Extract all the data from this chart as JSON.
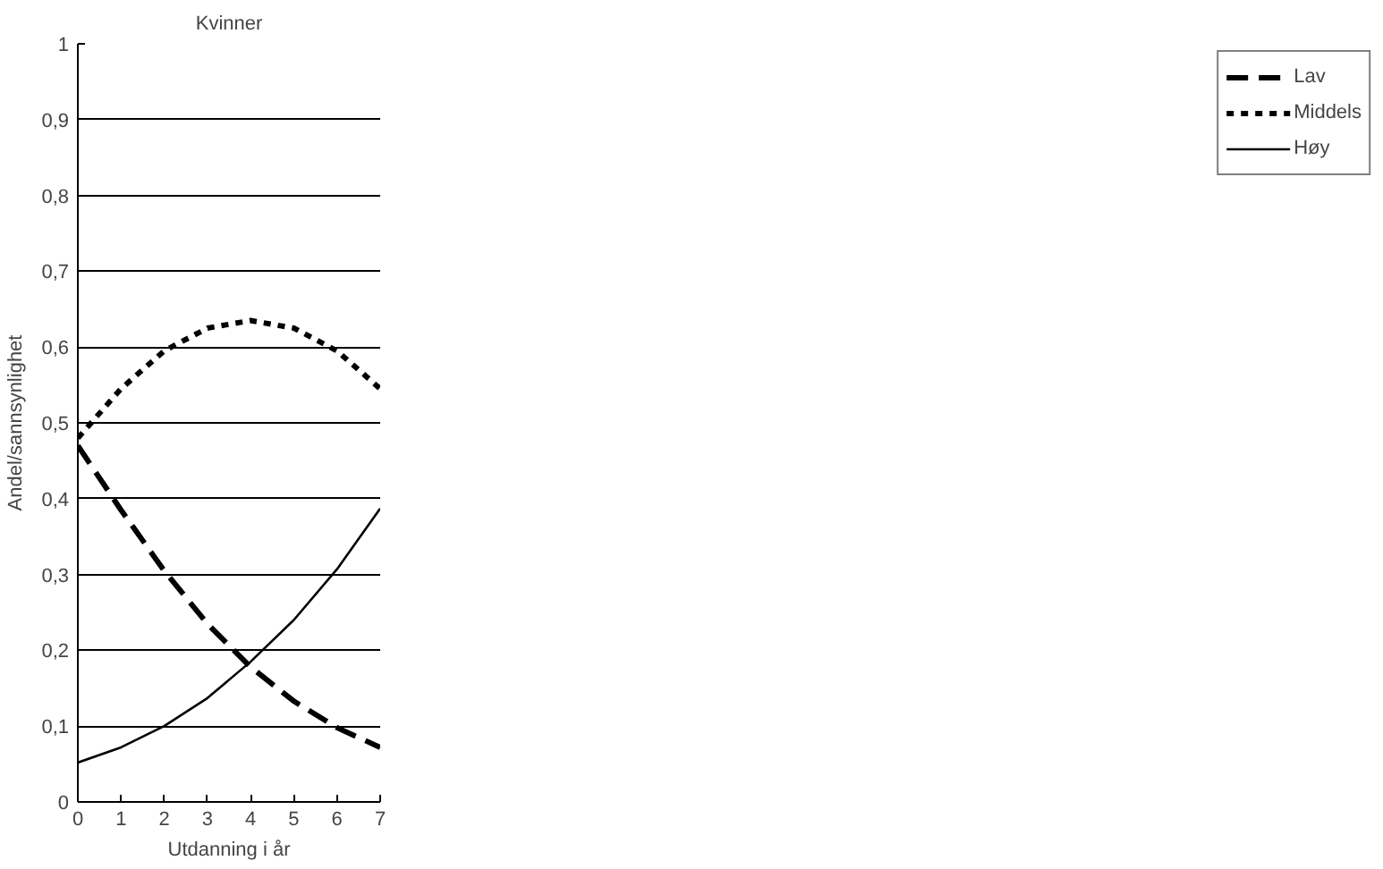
{
  "chart_data": {
    "type": "line",
    "title": "Kvinner",
    "xlabel": "Utdanning i år",
    "ylabel": "Andel/sannsynlighet",
    "x": [
      0,
      1,
      2,
      3,
      4,
      5,
      6,
      7
    ],
    "series": [
      {
        "name": "Lav",
        "color": "#000000",
        "line_style": "dashed",
        "values": [
          0.47,
          0.385,
          0.305,
          0.235,
          0.178,
          0.133,
          0.098,
          0.072
        ]
      },
      {
        "name": "Middels",
        "color": "#000000",
        "line_style": "dotted",
        "values": [
          0.48,
          0.545,
          0.595,
          0.625,
          0.635,
          0.625,
          0.595,
          0.545
        ]
      },
      {
        "name": "Høy",
        "color": "#000000",
        "line_style": "solid",
        "values": [
          0.052,
          0.072,
          0.1,
          0.137,
          0.185,
          0.24,
          0.307,
          0.387
        ]
      }
    ],
    "xlim": [
      0,
      7
    ],
    "xticks": [
      0,
      1,
      2,
      3,
      4,
      5,
      6,
      7
    ],
    "ylim": [
      0,
      1
    ],
    "yticks": [
      {
        "value": 0,
        "label": "0"
      },
      {
        "value": 0.1,
        "label": "0,1"
      },
      {
        "value": 0.2,
        "label": "0,2"
      },
      {
        "value": 0.3,
        "label": "0,3"
      },
      {
        "value": 0.4,
        "label": "0,4"
      },
      {
        "value": 0.5,
        "label": "0,5"
      },
      {
        "value": 0.6,
        "label": "0,6"
      },
      {
        "value": 0.7,
        "label": "0,7"
      },
      {
        "value": 0.8,
        "label": "0,8"
      },
      {
        "value": 0.9,
        "label": "0,9"
      },
      {
        "value": 1,
        "label": "1"
      }
    ],
    "grid": "y",
    "legend": "right"
  }
}
